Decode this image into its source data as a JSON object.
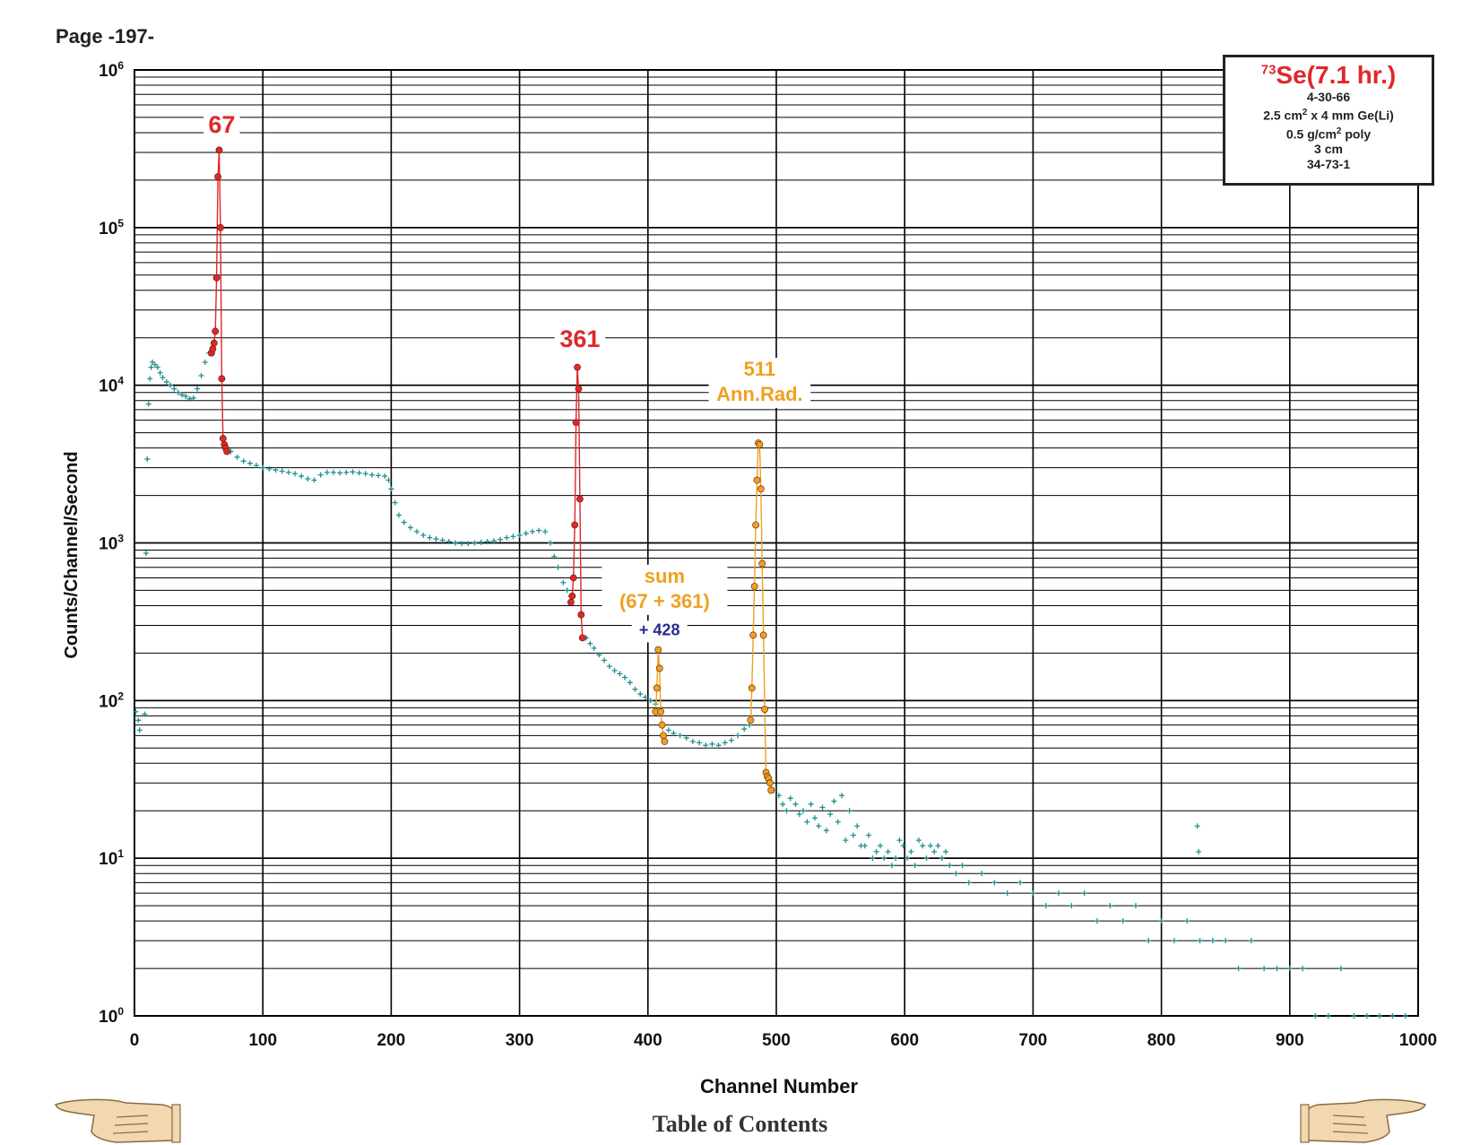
{
  "page": {
    "label": "Page -197-",
    "footer_link": "Table of Contents"
  },
  "info_box": {
    "isotope_mass": "73",
    "isotope_title": "Se(7.1 hr.)",
    "lines": [
      {
        "text": "4-30-66"
      },
      {
        "pre": "2.5 cm",
        "sup": "2",
        "post": " x 4 mm Ge(Li)"
      },
      {
        "pre": "0.5 g/cm",
        "sup": "2",
        "post": " poly"
      },
      {
        "text": "3 cm"
      },
      {
        "text": "34-73-1"
      }
    ]
  },
  "colors": {
    "background_series": "#1f8f8f",
    "primary_peaks": "#e0272a",
    "secondary_peaks": "#f0a020",
    "note": "#2b2b8f",
    "grid": "#000000"
  },
  "icons": [
    "pointing-hand-left-icon",
    "pointing-hand-right-icon"
  ],
  "chart_data": {
    "type": "scatter",
    "xlabel": "Channel Number",
    "ylabel": "Counts/Channel/Second",
    "xlim": [
      0,
      1000
    ],
    "ylim": [
      1,
      1000000
    ],
    "yscale": "log",
    "grid": true,
    "x_ticks": [
      "0",
      "100",
      "200",
      "300",
      "400",
      "500",
      "600",
      "700",
      "800",
      "900",
      "1000"
    ],
    "y_ticks": [
      {
        "base": "10",
        "exp": "0"
      },
      {
        "base": "10",
        "exp": "1"
      },
      {
        "base": "10",
        "exp": "2"
      },
      {
        "base": "10",
        "exp": "3"
      },
      {
        "base": "10",
        "exp": "4"
      },
      {
        "base": "10",
        "exp": "5"
      },
      {
        "base": "10",
        "exp": "6"
      }
    ],
    "annotations": [
      {
        "lines": [
          "67"
        ],
        "color": "#e0272a",
        "x": 68,
        "y": 400000
      },
      {
        "lines": [
          "361"
        ],
        "color": "#e0272a",
        "x": 347,
        "y": 17500
      },
      {
        "lines": [
          "511",
          "Ann.Rad."
        ],
        "color": "#f0a020",
        "x": 487,
        "y": 11500
      },
      {
        "lines": [
          "sum",
          "(67 + 361)"
        ],
        "color": "#f0a020",
        "x": 413,
        "y": 560
      },
      {
        "lines": [
          "+ 428"
        ],
        "color": "#2b2b8f",
        "x": 409,
        "y": 260
      }
    ],
    "series": [
      {
        "style": "background",
        "marker": "plus",
        "points": [
          [
            1,
            85
          ],
          [
            3,
            75
          ],
          [
            4,
            65
          ],
          [
            8,
            82
          ],
          [
            9,
            860
          ],
          [
            10,
            3400
          ],
          [
            11,
            7600
          ],
          [
            12,
            11000
          ],
          [
            13,
            13000
          ],
          [
            14,
            14000
          ],
          [
            16,
            13500
          ],
          [
            18,
            13000
          ],
          [
            20,
            12000
          ],
          [
            22,
            11200
          ],
          [
            25,
            10500
          ],
          [
            28,
            10000
          ],
          [
            31,
            9500
          ],
          [
            34,
            9000
          ],
          [
            37,
            8700
          ],
          [
            40,
            8500
          ],
          [
            43,
            8200
          ],
          [
            46,
            8300
          ],
          [
            49,
            9500
          ],
          [
            52,
            11500
          ],
          [
            55,
            14000
          ],
          [
            58,
            16000
          ],
          [
            60,
            16500
          ],
          [
            75,
            3800
          ],
          [
            80,
            3500
          ],
          [
            85,
            3300
          ],
          [
            90,
            3200
          ],
          [
            95,
            3100
          ],
          [
            100,
            3000
          ],
          [
            105,
            2950
          ],
          [
            110,
            2900
          ],
          [
            115,
            2850
          ],
          [
            120,
            2800
          ],
          [
            125,
            2750
          ],
          [
            130,
            2650
          ],
          [
            135,
            2550
          ],
          [
            140,
            2500
          ],
          [
            145,
            2700
          ],
          [
            150,
            2800
          ],
          [
            155,
            2800
          ],
          [
            160,
            2780
          ],
          [
            165,
            2800
          ],
          [
            170,
            2820
          ],
          [
            175,
            2780
          ],
          [
            180,
            2750
          ],
          [
            185,
            2700
          ],
          [
            190,
            2680
          ],
          [
            195,
            2650
          ],
          [
            198,
            2500
          ],
          [
            200,
            2200
          ],
          [
            203,
            1800
          ],
          [
            206,
            1500
          ],
          [
            210,
            1350
          ],
          [
            215,
            1250
          ],
          [
            220,
            1180
          ],
          [
            225,
            1120
          ],
          [
            230,
            1080
          ],
          [
            235,
            1060
          ],
          [
            240,
            1040
          ],
          [
            245,
            1020
          ],
          [
            250,
            1000
          ],
          [
            255,
            990
          ],
          [
            260,
            990
          ],
          [
            265,
            1000
          ],
          [
            270,
            1010
          ],
          [
            275,
            1020
          ],
          [
            280,
            1030
          ],
          [
            285,
            1050
          ],
          [
            290,
            1080
          ],
          [
            295,
            1100
          ],
          [
            300,
            1120
          ],
          [
            305,
            1150
          ],
          [
            310,
            1180
          ],
          [
            315,
            1200
          ],
          [
            320,
            1180
          ],
          [
            324,
            1000
          ],
          [
            327,
            820
          ],
          [
            330,
            700
          ],
          [
            334,
            560
          ],
          [
            337,
            500
          ],
          [
            340,
            460
          ],
          [
            352,
            250
          ],
          [
            355,
            230
          ],
          [
            358,
            215
          ],
          [
            362,
            195
          ],
          [
            366,
            180
          ],
          [
            370,
            165
          ],
          [
            374,
            155
          ],
          [
            378,
            148
          ],
          [
            382,
            140
          ],
          [
            386,
            130
          ],
          [
            390,
            118
          ],
          [
            394,
            110
          ],
          [
            398,
            105
          ],
          [
            402,
            100
          ],
          [
            406,
            95
          ],
          [
            416,
            65
          ],
          [
            420,
            62
          ],
          [
            425,
            60
          ],
          [
            430,
            58
          ],
          [
            435,
            55
          ],
          [
            440,
            54
          ],
          [
            445,
            52
          ],
          [
            450,
            53
          ],
          [
            455,
            52
          ],
          [
            460,
            54
          ],
          [
            465,
            56
          ],
          [
            470,
            60
          ],
          [
            475,
            66
          ],
          [
            479,
            70
          ],
          [
            498,
            27
          ],
          [
            502,
            25
          ],
          [
            505,
            22
          ],
          [
            508,
            20
          ],
          [
            511,
            24
          ],
          [
            515,
            22
          ],
          [
            518,
            19
          ],
          [
            521,
            20
          ],
          [
            524,
            17
          ],
          [
            527,
            22
          ],
          [
            530,
            18
          ],
          [
            533,
            16
          ],
          [
            536,
            21
          ],
          [
            539,
            15
          ],
          [
            542,
            19
          ],
          [
            545,
            23
          ],
          [
            548,
            17
          ],
          [
            551,
            25
          ],
          [
            554,
            13
          ],
          [
            557,
            20
          ],
          [
            560,
            14
          ],
          [
            563,
            16
          ],
          [
            566,
            12
          ],
          [
            569,
            12
          ],
          [
            572,
            14
          ],
          [
            575,
            10
          ],
          [
            578,
            11
          ],
          [
            581,
            12
          ],
          [
            584,
            10
          ],
          [
            587,
            11
          ],
          [
            590,
            9
          ],
          [
            593,
            10
          ],
          [
            596,
            13
          ],
          [
            599,
            12
          ],
          [
            602,
            10
          ],
          [
            605,
            11
          ],
          [
            608,
            9
          ],
          [
            611,
            13
          ],
          [
            614,
            12
          ],
          [
            617,
            10
          ],
          [
            620,
            12
          ],
          [
            623,
            11
          ],
          [
            626,
            12
          ],
          [
            629,
            10
          ],
          [
            632,
            11
          ],
          [
            635,
            9
          ],
          [
            640,
            8
          ],
          [
            645,
            9
          ],
          [
            650,
            7
          ],
          [
            660,
            8
          ],
          [
            670,
            7
          ],
          [
            680,
            6
          ],
          [
            690,
            7
          ],
          [
            700,
            6
          ],
          [
            710,
            5
          ],
          [
            720,
            6
          ],
          [
            730,
            5
          ],
          [
            740,
            6
          ],
          [
            750,
            4
          ],
          [
            760,
            5
          ],
          [
            770,
            4
          ],
          [
            780,
            5
          ],
          [
            790,
            3
          ],
          [
            800,
            4
          ],
          [
            810,
            3
          ],
          [
            820,
            4
          ],
          [
            828,
            16
          ],
          [
            829,
            11
          ],
          [
            830,
            3
          ],
          [
            840,
            3
          ],
          [
            850,
            3
          ],
          [
            860,
            2
          ],
          [
            870,
            3
          ],
          [
            880,
            2
          ],
          [
            890,
            2
          ],
          [
            900,
            2
          ],
          [
            910,
            2
          ],
          [
            920,
            1
          ],
          [
            930,
            1
          ],
          [
            940,
            2
          ],
          [
            950,
            1
          ],
          [
            960,
            1
          ],
          [
            970,
            1
          ],
          [
            980,
            1
          ],
          [
            990,
            1
          ]
        ]
      },
      {
        "style": "red-peak",
        "marker": "circle",
        "points": [
          [
            60,
            16000
          ],
          [
            61,
            17000
          ],
          [
            62,
            18500
          ],
          [
            63,
            22000
          ],
          [
            64,
            48000
          ],
          [
            65,
            210000
          ],
          [
            66,
            310000
          ],
          [
            67,
            100000
          ],
          [
            68,
            11000
          ],
          [
            69,
            4600
          ],
          [
            70,
            4200
          ],
          [
            71,
            4000
          ],
          [
            72,
            3800
          ]
        ]
      },
      {
        "style": "red-peak",
        "marker": "circle",
        "points": [
          [
            340,
            420
          ],
          [
            341,
            460
          ],
          [
            342,
            600
          ],
          [
            343,
            1300
          ],
          [
            344,
            5800
          ],
          [
            345,
            13000
          ],
          [
            346,
            9500
          ],
          [
            347,
            1900
          ],
          [
            348,
            350
          ],
          [
            349,
            250
          ]
        ]
      },
      {
        "style": "orange-peak",
        "marker": "circle",
        "points": [
          [
            406,
            85
          ],
          [
            407,
            120
          ],
          [
            408,
            210
          ],
          [
            409,
            160
          ],
          [
            410,
            85
          ],
          [
            411,
            70
          ],
          [
            412,
            60
          ],
          [
            413,
            55
          ]
        ]
      },
      {
        "style": "orange-peak",
        "marker": "circle",
        "points": [
          [
            480,
            75
          ],
          [
            481,
            120
          ],
          [
            482,
            260
          ],
          [
            483,
            530
          ],
          [
            484,
            1300
          ],
          [
            485,
            2500
          ],
          [
            486,
            4300
          ],
          [
            487,
            4200
          ],
          [
            488,
            2200
          ],
          [
            489,
            740
          ],
          [
            490,
            260
          ],
          [
            491,
            88
          ],
          [
            492,
            35
          ],
          [
            493,
            33
          ],
          [
            494,
            32
          ],
          [
            495,
            30
          ],
          [
            496,
            27
          ]
        ]
      }
    ]
  }
}
